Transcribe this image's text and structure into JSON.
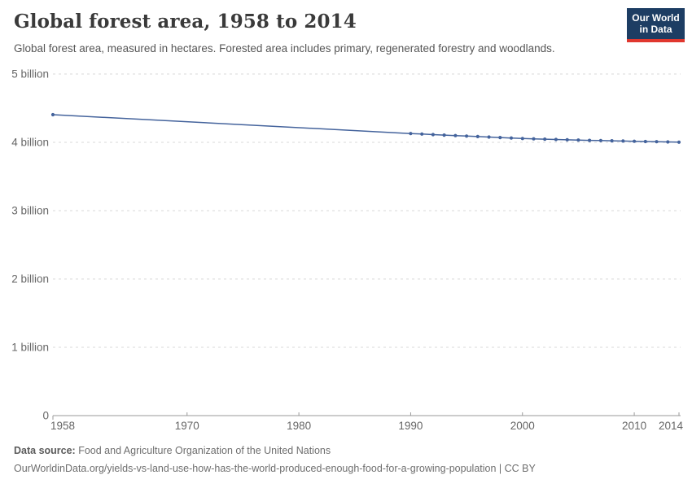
{
  "page": {
    "background": "#ffffff"
  },
  "header": {
    "title": "Global forest area, 1958 to 2014",
    "subtitle": "Global forest area, measured in hectares. Forested area includes primary, regenerated forestry and woodlands.",
    "logo": {
      "line1": "Our World",
      "line2": "in Data",
      "background_color": "#1d3d63",
      "accent_bar_color": "#e0372e",
      "text_color": "#ffffff"
    }
  },
  "chart_data": {
    "type": "line",
    "title": "Global forest area, 1958 to 2014",
    "unit": "hectares",
    "xlabel": "",
    "ylabel": "",
    "xlim": [
      1958,
      2014
    ],
    "ylim": [
      0,
      5000000000
    ],
    "grid": "horizontal-dashed",
    "grid_color": "#d9d9d9",
    "axis_color": "#999999",
    "tick_label_color": "#666666",
    "legend": "none",
    "x_ticks": [
      {
        "value": 1958,
        "label": "1958"
      },
      {
        "value": 1970,
        "label": "1970"
      },
      {
        "value": 1980,
        "label": "1980"
      },
      {
        "value": 1990,
        "label": "1990"
      },
      {
        "value": 2000,
        "label": "2000"
      },
      {
        "value": 2010,
        "label": "2010"
      },
      {
        "value": 2014,
        "label": "2014"
      }
    ],
    "y_ticks": [
      {
        "value": 0,
        "label": "0"
      },
      {
        "value": 1000000000,
        "label": "1 billion"
      },
      {
        "value": 2000000000,
        "label": "2 billion"
      },
      {
        "value": 3000000000,
        "label": "3 billion"
      },
      {
        "value": 4000000000,
        "label": "4 billion"
      },
      {
        "value": 5000000000,
        "label": "5 billion"
      }
    ],
    "series": [
      {
        "name": "Global forest area",
        "color": "#44639c",
        "points": [
          [
            1958,
            4405000000
          ],
          [
            1990,
            4128000000
          ],
          [
            1991,
            4121000000
          ],
          [
            1992,
            4113000000
          ],
          [
            1993,
            4106000000
          ],
          [
            1994,
            4099000000
          ],
          [
            1995,
            4092000000
          ],
          [
            1996,
            4085000000
          ],
          [
            1997,
            4077000000
          ],
          [
            1998,
            4070000000
          ],
          [
            1999,
            4063000000
          ],
          [
            2000,
            4056000000
          ],
          [
            2001,
            4051000000
          ],
          [
            2002,
            4047000000
          ],
          [
            2003,
            4042000000
          ],
          [
            2004,
            4037000000
          ],
          [
            2005,
            4033000000
          ],
          [
            2006,
            4029000000
          ],
          [
            2007,
            4026000000
          ],
          [
            2008,
            4023000000
          ],
          [
            2009,
            4019000000
          ],
          [
            2010,
            4016000000
          ],
          [
            2011,
            4012000000
          ],
          [
            2012,
            4009000000
          ],
          [
            2013,
            4006000000
          ],
          [
            2014,
            4002000000
          ]
        ]
      }
    ]
  },
  "footer": {
    "source_label": "Data source:",
    "source_text": " Food and Agriculture Organization of the United Nations",
    "url_line": "OurWorldinData.org/yields-vs-land-use-how-has-the-world-produced-enough-food-for-a-growing-population | CC BY"
  }
}
